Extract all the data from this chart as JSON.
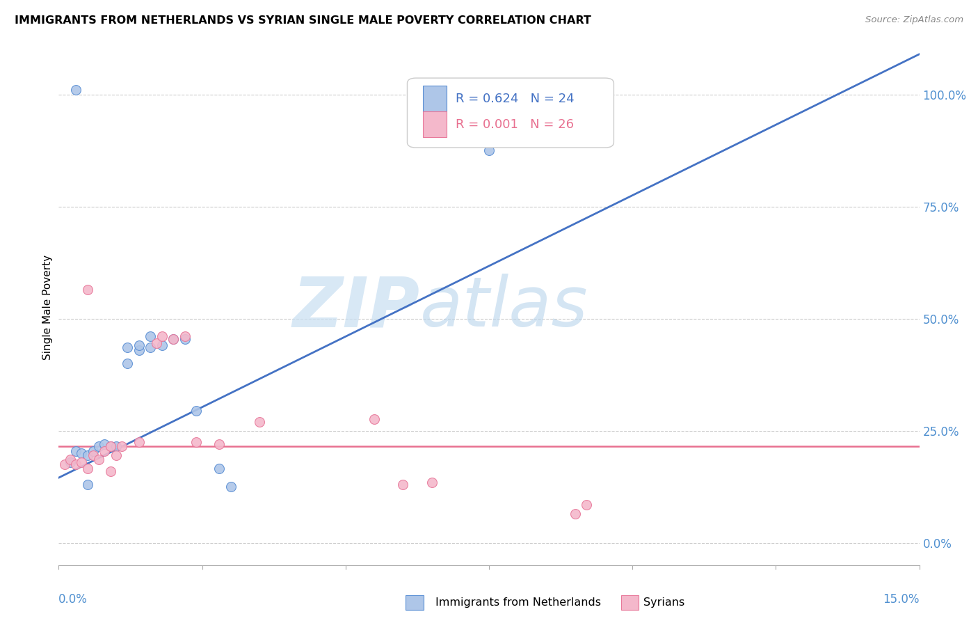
{
  "title": "IMMIGRANTS FROM NETHERLANDS VS SYRIAN SINGLE MALE POVERTY CORRELATION CHART",
  "source": "Source: ZipAtlas.com",
  "ylabel": "Single Male Poverty",
  "legend_blue_r": "R = 0.624",
  "legend_blue_n": "N = 24",
  "legend_pink_r": "R = 0.001",
  "legend_pink_n": "N = 26",
  "legend_label_blue": "Immigrants from Netherlands",
  "legend_label_pink": "Syrians",
  "watermark_zip": "ZIP",
  "watermark_atlas": "atlas",
  "blue_color": "#aec6e8",
  "pink_color": "#f4b8cb",
  "blue_edge_color": "#5a8fd4",
  "pink_edge_color": "#e8789a",
  "blue_line_color": "#4472c4",
  "pink_line_color": "#e87090",
  "right_tick_color": "#5090d0",
  "xlim": [
    0.0,
    0.15
  ],
  "ylim": [
    -0.05,
    1.1
  ],
  "blue_x": [
    0.002,
    0.003,
    0.004,
    0.005,
    0.006,
    0.007,
    0.008,
    0.009,
    0.01,
    0.012,
    0.014,
    0.016,
    0.018,
    0.012,
    0.014,
    0.016,
    0.02,
    0.022,
    0.024,
    0.028,
    0.03,
    0.075,
    0.003,
    0.005
  ],
  "blue_y": [
    0.18,
    0.205,
    0.2,
    0.195,
    0.205,
    0.215,
    0.22,
    0.215,
    0.215,
    0.4,
    0.43,
    0.435,
    0.44,
    0.435,
    0.44,
    0.46,
    0.455,
    0.455,
    0.295,
    0.165,
    0.125,
    0.875,
    1.01,
    0.13
  ],
  "pink_x": [
    0.001,
    0.002,
    0.003,
    0.004,
    0.005,
    0.006,
    0.007,
    0.008,
    0.009,
    0.01,
    0.011,
    0.014,
    0.017,
    0.018,
    0.02,
    0.022,
    0.024,
    0.028,
    0.035,
    0.055,
    0.06,
    0.065,
    0.09,
    0.092,
    0.005,
    0.009
  ],
  "pink_y": [
    0.175,
    0.185,
    0.175,
    0.18,
    0.165,
    0.195,
    0.185,
    0.205,
    0.215,
    0.195,
    0.215,
    0.225,
    0.445,
    0.46,
    0.455,
    0.46,
    0.225,
    0.22,
    0.27,
    0.275,
    0.13,
    0.135,
    0.065,
    0.085,
    0.565,
    0.16
  ],
  "blue_trend_x": [
    0.0,
    0.15
  ],
  "blue_trend_y": [
    0.145,
    1.09
  ],
  "pink_trend_x": [
    0.0,
    0.15
  ],
  "pink_trend_y": [
    0.215,
    0.215
  ],
  "yticks": [
    0.0,
    0.25,
    0.5,
    0.75,
    1.0
  ],
  "ytick_labels": [
    "0.0%",
    "25.0%",
    "50.0%",
    "75.0%",
    "100.0%"
  ],
  "xticks": [
    0.0,
    0.025,
    0.05,
    0.075,
    0.1,
    0.125,
    0.15
  ],
  "marker_size": 100,
  "marker_lw": 0.8
}
